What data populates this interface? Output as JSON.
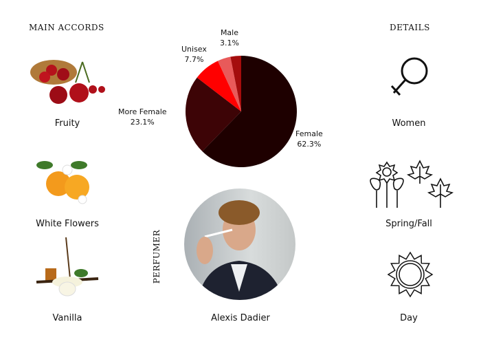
{
  "headers": {
    "main_accords": "MAIN ACCORDS",
    "details": "DETAILS",
    "perfumer": "PERFUMER"
  },
  "accords": [
    {
      "label": "Fruity",
      "icon": "cherries-image"
    },
    {
      "label": "White Flowers",
      "icon": "orange-blossom-image"
    },
    {
      "label": "Vanilla",
      "icon": "vanilla-flower-image"
    }
  ],
  "details": [
    {
      "label": "Women",
      "icon": "female-symbol-icon"
    },
    {
      "label": "Spring/Fall",
      "icon": "flowers-leaves-icon"
    },
    {
      "label": "Day",
      "icon": "sun-icon"
    }
  ],
  "perfumer": {
    "name": "Alexis Dadier"
  },
  "chart_data": {
    "type": "pie",
    "categories": [
      "Female",
      "More Female",
      "Unisex",
      "",
      "Male"
    ],
    "values": [
      62.3,
      23.1,
      7.7,
      3.8,
      3.1
    ],
    "value_labels": [
      "62.3%",
      "23.1%",
      "7.7%",
      "",
      "3.1%"
    ],
    "colors": [
      "#1e0000",
      "#3d0406",
      "#ff0000",
      "#e85a5a",
      "#a50d0d"
    ]
  }
}
